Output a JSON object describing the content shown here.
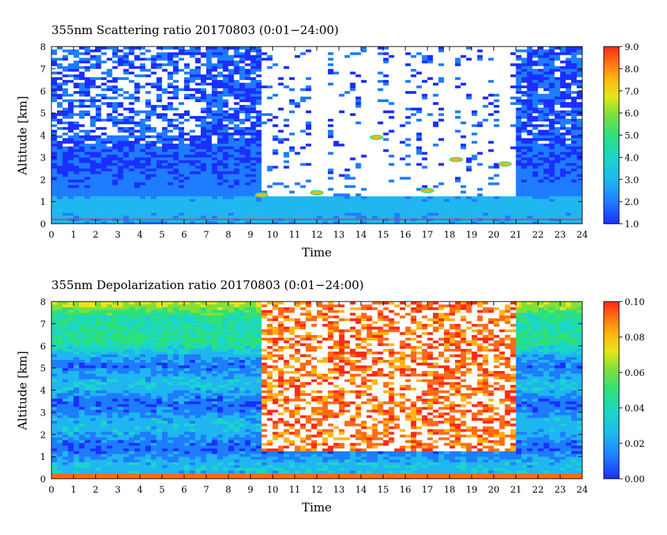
{
  "chart_data": [
    {
      "type": "heatmap",
      "title": "355nm Scattering ratio  20170803 (0:01−24:00)",
      "xlabel": "Time",
      "ylabel": "Altitude [km]",
      "xlim": [
        0,
        24
      ],
      "ylim": [
        0,
        8
      ],
      "x_ticks": [
        "0",
        "1",
        "2",
        "3",
        "4",
        "5",
        "6",
        "7",
        "8",
        "9",
        "10",
        "11",
        "12",
        "13",
        "14",
        "15",
        "16",
        "17",
        "18",
        "19",
        "20",
        "21",
        "22",
        "23",
        "24"
      ],
      "y_ticks": [
        "0",
        "1",
        "2",
        "3",
        "4",
        "5",
        "6",
        "7",
        "8"
      ],
      "colorbar": {
        "range": [
          1.0,
          9.0
        ],
        "ticks": [
          "1.0",
          "2.0",
          "3.0",
          "4.0",
          "5.0",
          "6.0",
          "7.0",
          "8.0",
          "9.0"
        ]
      },
      "features": {
        "near_surface_layer_km": [
          0.4,
          0.5
        ],
        "surface_line_km": 0.2,
        "cloud_base_km": [
          [
            9.5,
            1.3
          ],
          [
            12,
            1.4
          ],
          [
            14.7,
            3.9
          ],
          [
            17,
            1.5
          ],
          [
            18.3,
            2.9
          ],
          [
            20.5,
            2.7
          ]
        ],
        "missing_data_region": {
          "x": [
            9.4,
            20.9
          ],
          "y_above_km": 1.3
        }
      }
    },
    {
      "type": "heatmap",
      "title": "355nm Depolarization ratio  20170803 (0:01−24:00)",
      "xlabel": "Time",
      "ylabel": "Altitude [km]",
      "xlim": [
        0,
        24
      ],
      "ylim": [
        0,
        8
      ],
      "x_ticks": [
        "0",
        "1",
        "2",
        "3",
        "4",
        "5",
        "6",
        "7",
        "8",
        "9",
        "10",
        "11",
        "12",
        "13",
        "14",
        "15",
        "16",
        "17",
        "18",
        "19",
        "20",
        "21",
        "22",
        "23",
        "24"
      ],
      "y_ticks": [
        "0",
        "1",
        "2",
        "3",
        "4",
        "5",
        "6",
        "7",
        "8"
      ],
      "colorbar": {
        "range": [
          0.0,
          0.1
        ],
        "ticks": [
          "0.00",
          "0.02",
          "0.04",
          "0.06",
          "0.08",
          "0.10"
        ]
      }
    }
  ],
  "colors": {
    "scale": [
      "#1a2fff",
      "#1e7cff",
      "#1fb6f0",
      "#19d6c8",
      "#2ee07a",
      "#7fe03a",
      "#e6e619",
      "#ffb414",
      "#ff6a14",
      "#ff2a14"
    ]
  }
}
